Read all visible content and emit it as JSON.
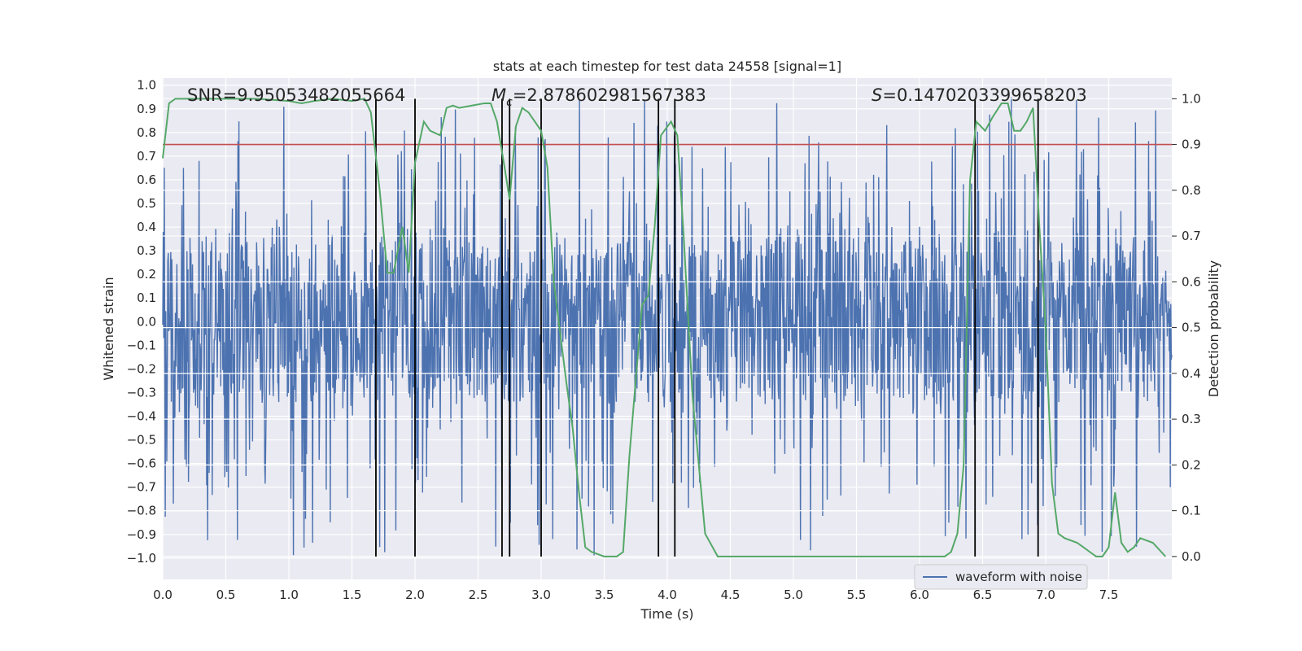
{
  "chart_data": {
    "type": "line",
    "title": "stats at each timestep for test data 24558 [signal=1]",
    "xlabel": "Time (s)",
    "ylabel_left": "Whitened strain",
    "ylabel_right": "Detection probability",
    "xlim": [
      0,
      8.0
    ],
    "ylim_left": [
      -1.09,
      1.03
    ],
    "ylim_right": [
      -0.05,
      1.045
    ],
    "x_ticks": [
      "0.0",
      "0.5",
      "1.0",
      "1.5",
      "2.0",
      "2.5",
      "3.0",
      "3.5",
      "4.0",
      "4.5",
      "5.0",
      "5.5",
      "6.0",
      "6.5",
      "7.0",
      "7.5"
    ],
    "y_ticks_left": [
      "1.0",
      "0.9",
      "0.8",
      "0.7",
      "0.6",
      "0.5",
      "0.4",
      "0.3",
      "0.2",
      "0.1",
      "0.0",
      "−0.1",
      "−0.2",
      "−0.3",
      "−0.4",
      "−0.5",
      "−0.6",
      "−0.7",
      "−0.8",
      "−0.9",
      "−1.0"
    ],
    "y_ticks_right": [
      "1.0",
      "0.9",
      "0.8",
      "0.7",
      "0.6",
      "0.5",
      "0.4",
      "0.3",
      "0.2",
      "0.1",
      "0.0"
    ],
    "annotations": {
      "snr": "SNR=9.95053482055664",
      "mc_symbol": "M",
      "mc_sub": "c",
      "mc_value": "=2.878602981567383",
      "s_symbol": "S",
      "s_value": "=0.1470203399658203"
    },
    "threshold": {
      "value": 0.9,
      "color": "#c44e52"
    },
    "vertical_lines": [
      1.69,
      2.0,
      2.69,
      2.75,
      3.0,
      3.93,
      4.06,
      6.44,
      6.94
    ],
    "legend": {
      "label": "waveform with noise",
      "placement": "lower-center-right"
    },
    "series": [
      {
        "name": "waveform with noise",
        "color": "#4c72b0",
        "sample_rate": 250,
        "duration": 8.0,
        "core_amplitude": 0.34,
        "peak_max": 0.95,
        "trough_min": -1.0
      },
      {
        "name": "detection probability",
        "color": "#55a868",
        "x": [
          0.0,
          0.05,
          0.1,
          0.25,
          0.5,
          0.75,
          1.0,
          1.1,
          1.2,
          1.35,
          1.5,
          1.6,
          1.65,
          1.72,
          1.78,
          1.83,
          1.9,
          1.95,
          2.0,
          2.07,
          2.12,
          2.2,
          2.25,
          2.3,
          2.35,
          2.45,
          2.55,
          2.6,
          2.65,
          2.71,
          2.75,
          2.8,
          2.85,
          2.9,
          3.0,
          3.05,
          3.1,
          3.2,
          3.25,
          3.3,
          3.35,
          3.4,
          3.5,
          3.6,
          3.65,
          3.7,
          3.8,
          3.85,
          3.9,
          3.95,
          4.03,
          4.08,
          4.13,
          4.2,
          4.3,
          4.4,
          4.5,
          4.6,
          5.0,
          5.2,
          5.3,
          6.0,
          6.2,
          6.25,
          6.3,
          6.35,
          6.4,
          6.45,
          6.52,
          6.58,
          6.65,
          6.7,
          6.75,
          6.8,
          6.85,
          6.9,
          6.95,
          7.0,
          7.05,
          7.1,
          7.15,
          7.25,
          7.3,
          7.35,
          7.4,
          7.45,
          7.5,
          7.55,
          7.6,
          7.65,
          7.7,
          7.75,
          7.85,
          7.95
        ],
        "values": [
          0.87,
          0.99,
          1.0,
          1.0,
          1.0,
          1.0,
          0.995,
          0.99,
          0.995,
          1.0,
          0.995,
          1.0,
          0.97,
          0.8,
          0.62,
          0.62,
          0.72,
          0.62,
          0.86,
          0.95,
          0.93,
          0.92,
          0.98,
          0.985,
          0.98,
          0.985,
          0.99,
          0.99,
          0.95,
          0.85,
          0.78,
          0.94,
          0.98,
          0.97,
          0.93,
          0.85,
          0.6,
          0.38,
          0.28,
          0.14,
          0.02,
          0.01,
          0.0,
          0.0,
          0.01,
          0.22,
          0.55,
          0.57,
          0.72,
          0.92,
          0.95,
          0.92,
          0.7,
          0.35,
          0.05,
          0.0,
          0.0,
          0.0,
          0.0,
          0.0,
          0.0,
          0.0,
          0.0,
          0.01,
          0.05,
          0.2,
          0.82,
          0.95,
          0.93,
          0.96,
          0.99,
          0.99,
          0.93,
          0.93,
          0.95,
          0.98,
          0.72,
          0.5,
          0.16,
          0.05,
          0.04,
          0.03,
          0.02,
          0.01,
          0.0,
          0.0,
          0.02,
          0.14,
          0.03,
          0.01,
          0.02,
          0.04,
          0.03,
          0.0
        ]
      }
    ]
  }
}
